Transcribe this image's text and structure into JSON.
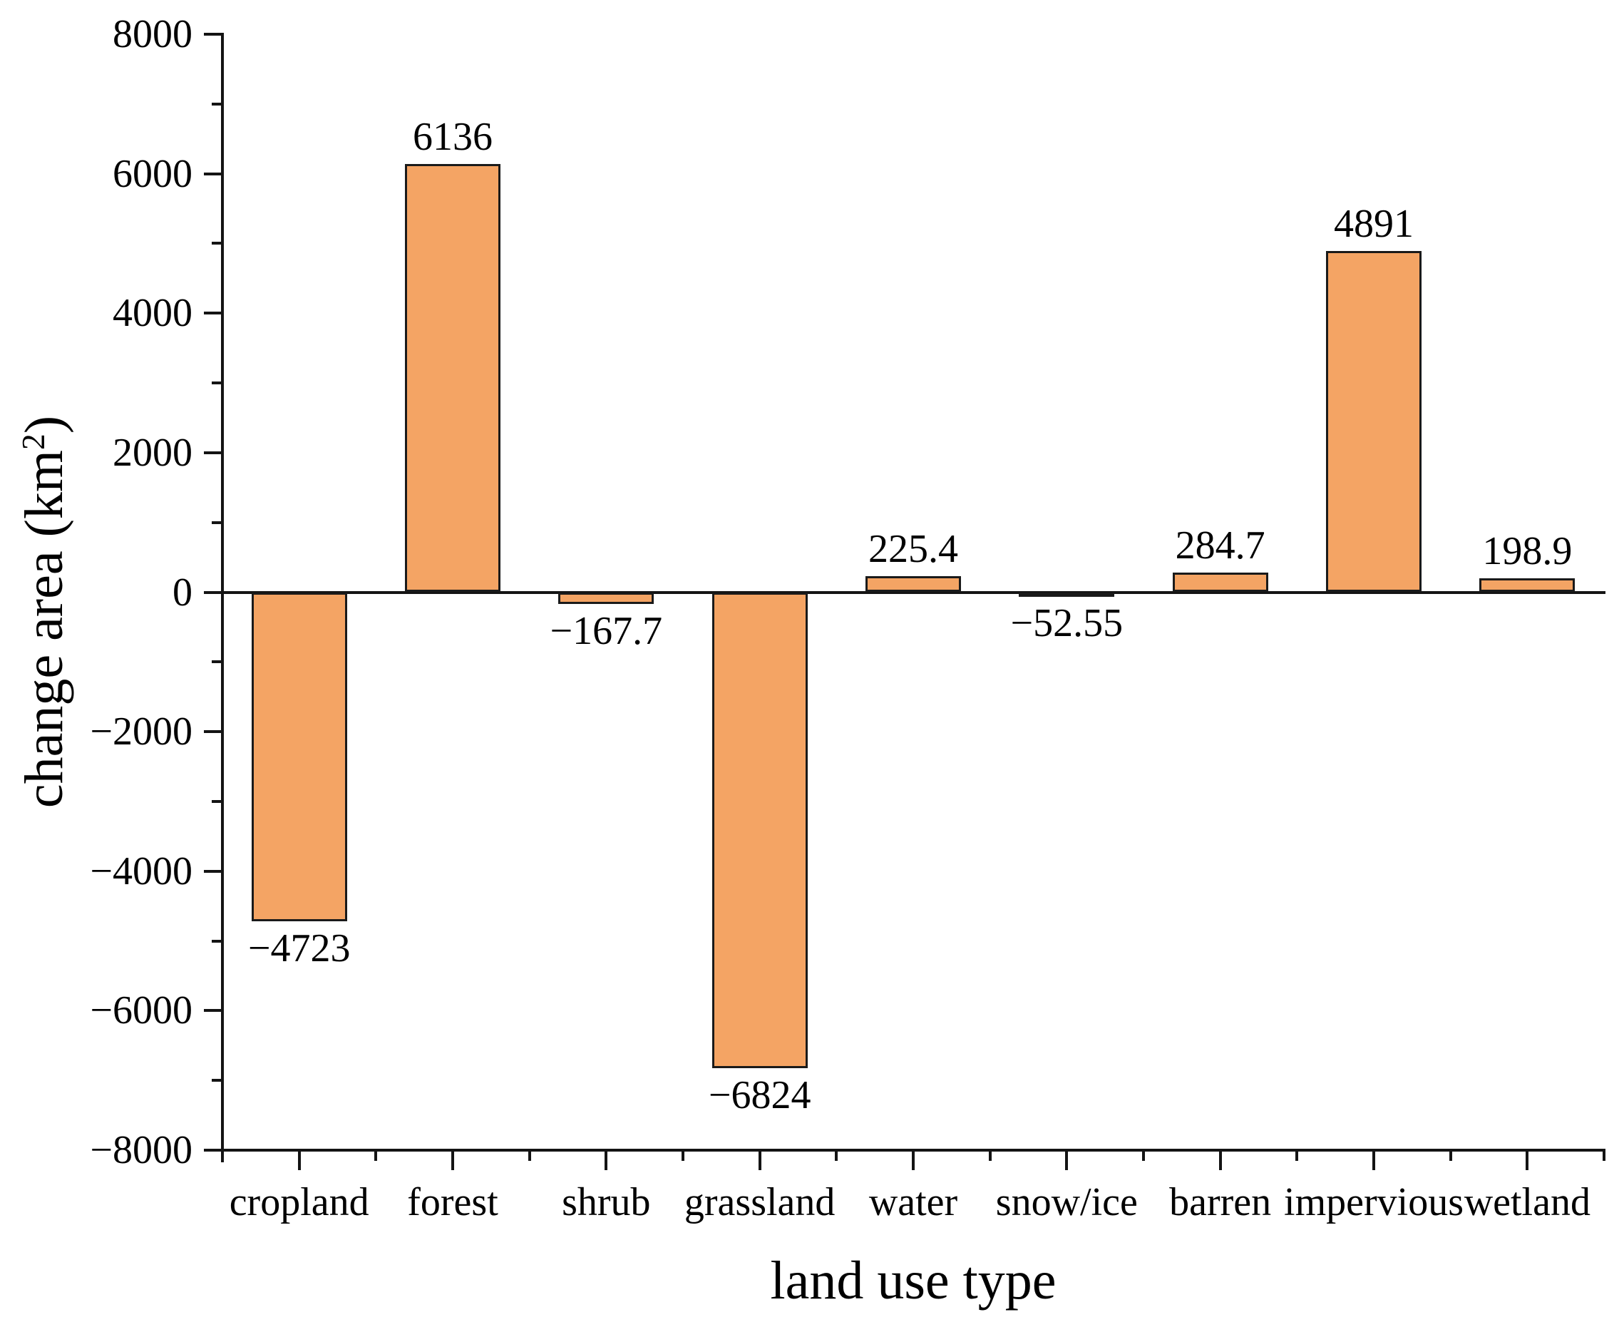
{
  "chart_data": {
    "type": "bar",
    "title": "",
    "xlabel": "land use type",
    "ylabel": "change area (km²)",
    "ylabel_parts": {
      "prefix": "change area (km",
      "sup": "2",
      "suffix": ")"
    },
    "categories": [
      "cropland",
      "forest",
      "shrub",
      "grassland",
      "water",
      "snow/ice",
      "barren",
      "impervious",
      "wetland"
    ],
    "values": [
      -4723,
      6136,
      -167.7,
      -6824,
      225.4,
      -52.55,
      284.7,
      4891,
      198.9
    ],
    "value_labels": [
      "−4723",
      "6136",
      "−167.7",
      "−6824",
      "225.4",
      "−52.55",
      "284.7",
      "4891",
      "198.9"
    ],
    "ylim": [
      -8000,
      8000
    ],
    "y_major_step": 2000,
    "y_minor_step": 1000,
    "y_tick_labels": [
      "8000",
      "6000",
      "4000",
      "2000",
      "0",
      "−2000",
      "−4000",
      "−6000",
      "−8000"
    ],
    "grid": false,
    "legend": null,
    "zero_line": true,
    "bar_color": "#F4A464",
    "bar_edge_color": "#1A1A1A",
    "axis_color": "#141414",
    "text_color": "#000000"
  }
}
